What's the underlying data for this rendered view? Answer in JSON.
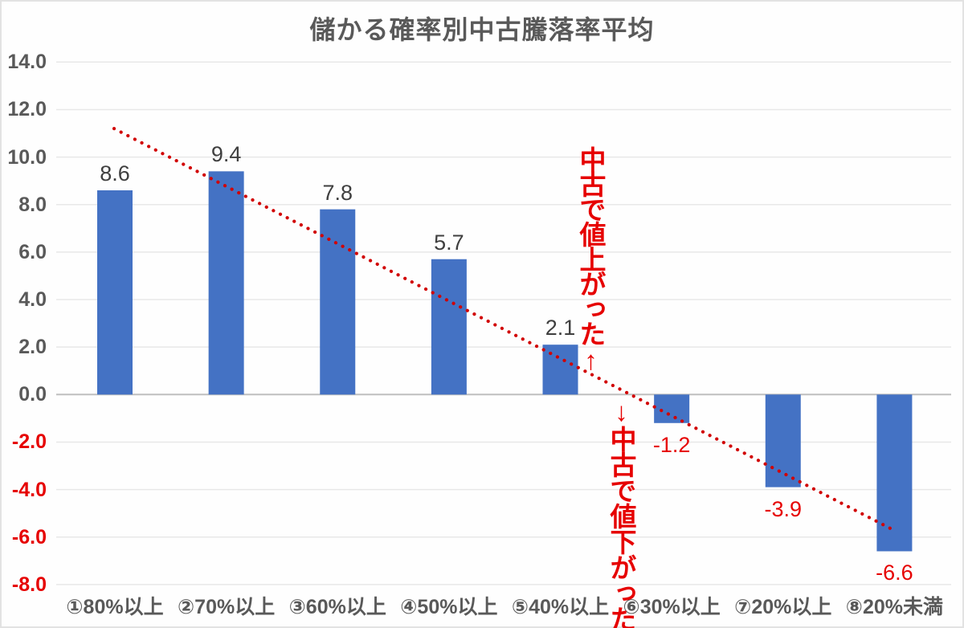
{
  "chart_data": {
    "type": "bar",
    "title": "儲かる確率別中古騰落率平均",
    "categories": [
      "①80%以上",
      "②70%以上",
      "③60%以上",
      "④50%以上",
      "⑤40%以上",
      "⑥30%以上",
      "⑦20%以上",
      "⑧20%未満"
    ],
    "values": [
      8.6,
      9.4,
      7.8,
      5.7,
      2.1,
      -1.2,
      -3.9,
      -6.6
    ],
    "value_labels": [
      "8.6",
      "9.4",
      "7.8",
      "5.7",
      "2.1",
      "-1.2",
      "-3.9",
      "-6.6"
    ],
    "xlabel": "",
    "ylabel": "",
    "ylim": [
      -8.0,
      14.0
    ],
    "ytick_step": 2.0,
    "ytick_labels": [
      "14.0",
      "12.0",
      "10.0",
      "8.0",
      "6.0",
      "4.0",
      "2.0",
      "0.0",
      "-2.0",
      "-4.0",
      "-6.0",
      "-8.0"
    ],
    "grid": true,
    "legend": "none",
    "trendline": {
      "style": "dotted",
      "start_value": 11.2,
      "end_value": -5.7,
      "color": "#d10000"
    },
    "annotations": [
      {
        "text": "中古で値上がった↑",
        "orientation": "vertical",
        "color": "#e60000",
        "meaning": "price rose on used market"
      },
      {
        "text": "↓中古で値下がった",
        "orientation": "vertical",
        "color": "#e60000",
        "meaning": "price fell on used market"
      }
    ],
    "colors": {
      "bar": "#4472c4",
      "positive_label_text": "#3f3f3f",
      "negative_label_text": "#e60000",
      "axis_text": "#595959",
      "negative_axis_text": "#e60000",
      "gridline": "#e8e8e8",
      "baseline": "#bfbfbf",
      "title_text": "#595959",
      "background": "#fefefe"
    }
  }
}
